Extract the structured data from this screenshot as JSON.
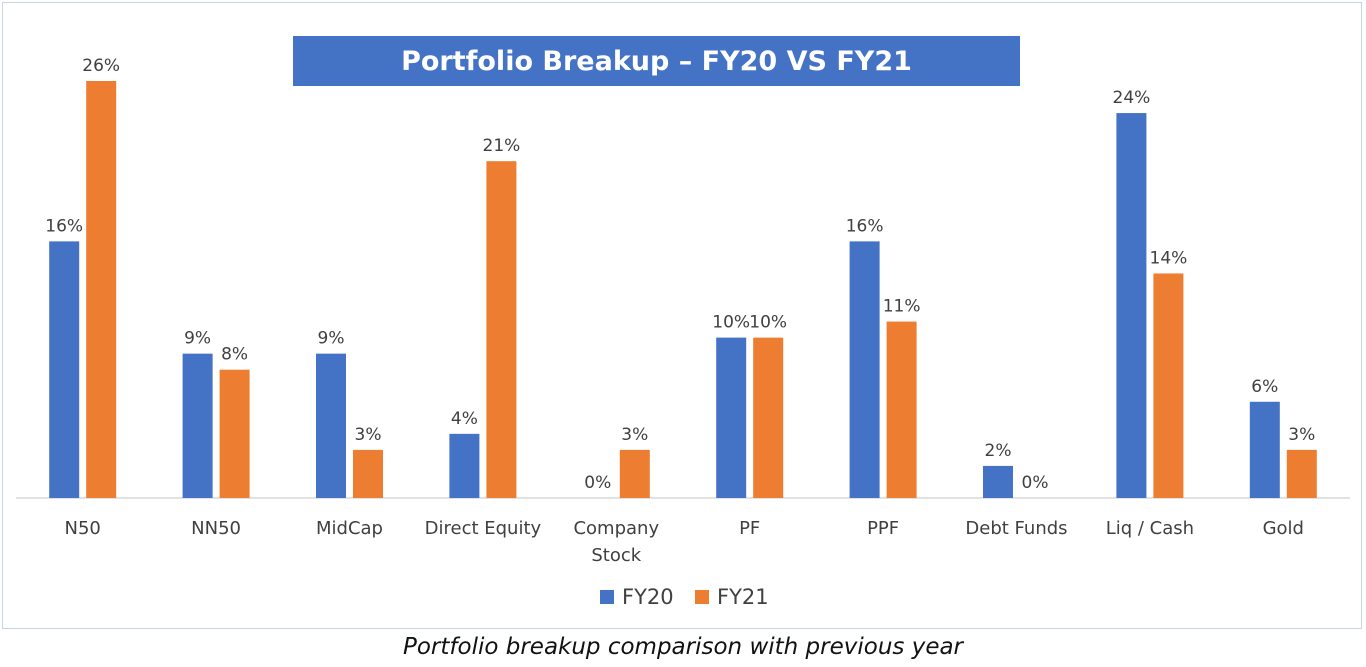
{
  "chart_data": {
    "type": "bar",
    "title": "Portfolio Breakup – FY20 VS FY21",
    "categories": [
      [
        "N50"
      ],
      [
        "NN50"
      ],
      [
        "MidCap"
      ],
      [
        "Direct Equity"
      ],
      [
        "Company",
        "Stock"
      ],
      [
        "PF"
      ],
      [
        "PPF"
      ],
      [
        "Debt Funds"
      ],
      [
        "Liq / Cash"
      ],
      [
        "Gold"
      ]
    ],
    "series": [
      {
        "name": "FY20",
        "color": "#4472c4",
        "values": [
          16,
          9,
          9,
          4,
          0,
          10,
          16,
          2,
          24,
          6
        ],
        "labels": [
          "16%",
          "9%",
          "9%",
          "4%",
          "0%",
          "10%",
          "16%",
          "2%",
          "24%",
          "6%"
        ]
      },
      {
        "name": "FY21",
        "color": "#ed7d31",
        "values": [
          26,
          8,
          3,
          21,
          3,
          10,
          11,
          0,
          14,
          3
        ],
        "labels": [
          "26%",
          "8%",
          "3%",
          "21%",
          "3%",
          "10%",
          "11%",
          "0%",
          "14%",
          "3%"
        ]
      }
    ],
    "xlabel": "",
    "ylabel": "",
    "ylim": [
      0,
      26
    ],
    "grid": false,
    "legend": "bottom-center",
    "axis_color": "#d9d9d9",
    "label_color": "#404040"
  },
  "caption": "Portfolio breakup comparison with previous year"
}
